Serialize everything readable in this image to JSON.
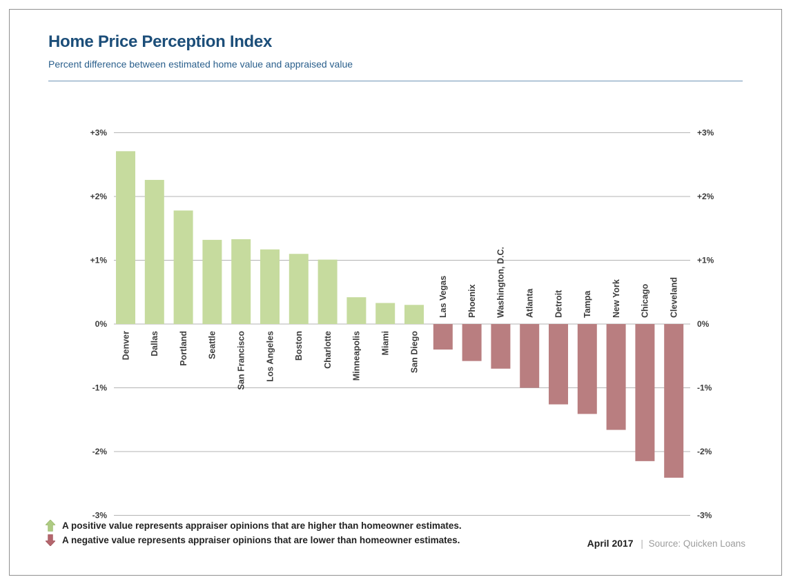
{
  "header": {
    "title": "Home Price Perception Index",
    "subtitle": "Percent difference between estimated home value and appraised value"
  },
  "chart_data": {
    "type": "bar",
    "title": "Home Price Perception Index",
    "subtitle": "Percent difference between estimated home value and appraised value",
    "xlabel": "",
    "ylabel": "Percent difference between estimated home value and appraised value",
    "ylim": [
      -3,
      3
    ],
    "yticks": [
      3,
      2,
      1,
      0,
      -1,
      -2,
      -3
    ],
    "ytick_labels": [
      "+3%",
      "+2%",
      "+1%",
      "0%",
      "-1%",
      "-2%",
      "-3%"
    ],
    "axis_label_sides": "both",
    "grid": true,
    "categories": [
      "Denver",
      "Dallas",
      "Portland",
      "Seattle",
      "San Francisco",
      "Los Angeles",
      "Boston",
      "Charlotte",
      "Minneapolis",
      "Miami",
      "San Diego",
      "Las Vegas",
      "Phoenix",
      "Washington, D.C.",
      "Atlanta",
      "Detroit",
      "Tampa",
      "New York",
      "Chicago",
      "Cleveland"
    ],
    "values": [
      2.71,
      2.26,
      1.78,
      1.32,
      1.33,
      1.17,
      1.1,
      1.01,
      0.42,
      0.33,
      0.3,
      -0.4,
      -0.58,
      -0.7,
      -1.0,
      -1.26,
      -1.41,
      -1.66,
      -2.15,
      -2.41
    ],
    "positive_color": "#c6db9e",
    "negative_color": "#b97e80"
  },
  "legend": {
    "positive_text": "A positive value represents appraiser opinions that are higher than homeowner estimates.",
    "negative_text": "A negative value represents appraiser opinions that are lower than homeowner estimates.",
    "positive_icon": "up-block-arrow",
    "negative_icon": "down-block-arrow",
    "positive_icon_color": "#aecb83",
    "negative_icon_color": "#b4666d"
  },
  "footer": {
    "date": "April 2017",
    "separator": "|",
    "source": "Source: Quicken Loans"
  },
  "colors": {
    "title_blue": "#1c4e79",
    "subtitle_blue": "#2a5f8c",
    "divider_blue": "#6f94b5",
    "gridline_gray": "#b3b3b3",
    "axis_text": "#3c3c3c",
    "bar_positive": "#c6db9e",
    "bar_negative": "#b97e80",
    "frame_border": "#8f8f8f"
  }
}
